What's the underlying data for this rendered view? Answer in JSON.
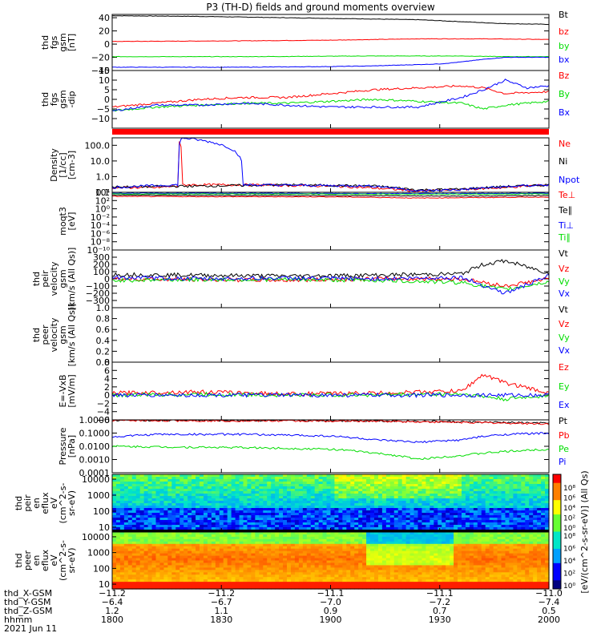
{
  "title": "P3 (TH-D) fields and ground moments overview",
  "colors": {
    "black": "#000000",
    "red": "#ff0000",
    "green": "#00dd00",
    "blue": "#0000ff",
    "lightgreen": "#66ff33"
  },
  "chart_data": [
    {
      "type": "line",
      "ylabel_lines": [
        "thd",
        "fgs",
        "gsm",
        "[nT]"
      ],
      "ylim": [
        -40,
        45
      ],
      "yticks": [
        "40",
        "20",
        "0",
        "−20",
        "−40"
      ],
      "ytick_values": [
        40,
        20,
        0,
        -20,
        -40
      ],
      "series": [
        {
          "name": "Bt",
          "color": "#000000",
          "x": [
            0,
            0.2,
            0.4,
            0.5,
            0.6,
            0.7,
            0.8,
            0.9,
            1
          ],
          "y": [
            43,
            42,
            40,
            39,
            38,
            37,
            34,
            31,
            30
          ]
        },
        {
          "name": "bz",
          "color": "#ff0000",
          "x": [
            0,
            0.3,
            0.5,
            0.7,
            0.85,
            1
          ],
          "y": [
            4,
            5,
            6,
            8,
            8,
            7
          ]
        },
        {
          "name": "by",
          "color": "#00dd00",
          "x": [
            0,
            0.3,
            0.6,
            0.8,
            0.9,
            1
          ],
          "y": [
            -19,
            -19,
            -18,
            -18,
            -19,
            -19
          ]
        },
        {
          "name": "bx",
          "color": "#0000ff",
          "x": [
            0,
            0.3,
            0.5,
            0.6,
            0.75,
            0.8,
            0.85,
            0.9,
            1
          ],
          "y": [
            -35,
            -35,
            -34,
            -33,
            -30,
            -27,
            -23,
            -20,
            -20
          ]
        }
      ]
    },
    {
      "type": "line",
      "ylabel_lines": [
        "thd",
        "fgs",
        "gsm",
        "-dip"
      ],
      "ylim": [
        -15,
        15
      ],
      "yticks": [
        "15",
        "10",
        "5",
        "0",
        "−5",
        "−10"
      ],
      "ytick_values": [
        15,
        10,
        5,
        0,
        -5,
        -10
      ],
      "series": [
        {
          "name": "Bz",
          "color": "#ff0000",
          "x": [
            0,
            0.1,
            0.2,
            0.3,
            0.4,
            0.5,
            0.6,
            0.7,
            0.8,
            0.85,
            0.9,
            1
          ],
          "y": [
            -4,
            -2,
            0,
            1,
            1,
            3,
            5,
            6,
            7,
            6,
            3,
            4
          ]
        },
        {
          "name": "By",
          "color": "#00dd00",
          "x": [
            0,
            0.1,
            0.2,
            0.3,
            0.4,
            0.5,
            0.6,
            0.7,
            0.8,
            0.85,
            0.9,
            1
          ],
          "y": [
            -6,
            -4,
            -3,
            -2,
            -2,
            -1,
            0,
            -1,
            -2,
            -5,
            -3,
            -1
          ]
        },
        {
          "name": "Bx",
          "color": "#0000ff",
          "x": [
            0,
            0.1,
            0.2,
            0.3,
            0.4,
            0.5,
            0.6,
            0.7,
            0.8,
            0.85,
            0.9,
            0.95,
            1
          ],
          "y": [
            -6,
            -3,
            -3,
            -2,
            -3,
            -4,
            -4,
            -4,
            1,
            5,
            10,
            6,
            7
          ]
        }
      ]
    },
    {
      "type": "line",
      "ylabel_lines": [
        "Density",
        "[1/cc]",
        "[cm-3]"
      ],
      "scale": "log",
      "ylim": [
        0.1,
        300
      ],
      "yticks": [
        "100.0",
        "10.0",
        "1.0",
        "0.1"
      ],
      "ytick_values": [
        100,
        10,
        1,
        0.1
      ],
      "series": [
        {
          "name": "Ne",
          "color": "#ff0000",
          "x": [
            0,
            0.1,
            0.15,
            0.15,
            0.16,
            0.3,
            0.5,
            0.7,
            0.8,
            0.9,
            1
          ],
          "y": [
            0.2,
            0.2,
            0.25,
            300,
            0.3,
            0.3,
            0.25,
            0.12,
            0.15,
            0.2,
            0.3
          ]
        },
        {
          "name": "Ni",
          "color": "#000000",
          "x": [
            0,
            0.2,
            0.4,
            0.6,
            0.7,
            0.8,
            1
          ],
          "y": [
            0.22,
            0.25,
            0.3,
            0.25,
            0.14,
            0.16,
            0.3
          ]
        },
        {
          "name": "Npot",
          "color": "#0000ff",
          "x": [
            0,
            0.15,
            0.16,
            0.3,
            0.6,
            0.7,
            0.8,
            1
          ],
          "y": [
            0.2,
            0.3,
            300,
            0.3,
            0.25,
            0.12,
            0.15,
            0.3
          ]
        }
      ]
    },
    {
      "type": "line",
      "ylabel_lines": [
        "moqt3",
        "[eV]"
      ],
      "scale": "log",
      "ylim": [
        1e-10,
        10000.0
      ],
      "yticks": [
        "10⁴",
        "10²",
        "10⁰",
        "10⁻²",
        "10⁻⁴",
        "10⁻⁶",
        "10⁻⁸",
        "10⁻¹⁰"
      ],
      "ytick_values": [
        10000.0,
        100.0,
        1,
        0.01,
        0.0001,
        1e-06,
        1e-08,
        1e-10
      ],
      "series": [
        {
          "name": "Te⊥",
          "color": "#ff0000",
          "x": [
            0,
            0.2,
            0.5,
            0.7,
            0.8,
            1
          ],
          "y": [
            1000,
            900,
            800,
            400,
            500,
            700
          ]
        },
        {
          "name": "Te∥",
          "color": "#000000",
          "x": [
            0,
            0.3,
            0.6,
            0.8,
            1
          ],
          "y": [
            2000,
            1800,
            1500,
            1200,
            1600
          ]
        },
        {
          "name": "Ti⊥",
          "color": "#0000ff",
          "x": [
            0,
            0.3,
            0.6,
            0.8,
            1
          ],
          "y": [
            6000,
            6000,
            5000,
            5000,
            6000
          ]
        },
        {
          "name": "Ti∥",
          "color": "#00dd00",
          "x": [
            0,
            0.3,
            0.6,
            0.8,
            1
          ],
          "y": [
            4000,
            4000,
            3500,
            3500,
            4000
          ]
        }
      ]
    },
    {
      "type": "line",
      "ylabel_lines": [
        "thd",
        "peir",
        "velocity",
        "gsm",
        "[km/s (All Qs)]"
      ],
      "ylim": [
        -400,
        400
      ],
      "yticks": [
        "300",
        "200",
        "100",
        "0",
        "−100",
        "−200",
        "−300"
      ],
      "ytick_values": [
        300,
        200,
        100,
        0,
        -100,
        -200,
        -300
      ],
      "series": [
        {
          "name": "Vt",
          "color": "#000000",
          "x": [
            0,
            0.2,
            0.4,
            0.6,
            0.8,
            0.85,
            0.9,
            1
          ],
          "y": [
            60,
            50,
            40,
            50,
            70,
            200,
            250,
            80
          ]
        },
        {
          "name": "Vz",
          "color": "#ff0000",
          "x": [
            0,
            0.2,
            0.4,
            0.6,
            0.8,
            0.9,
            1
          ],
          "y": [
            0,
            -10,
            -20,
            0,
            0,
            -100,
            0
          ]
        },
        {
          "name": "Vy",
          "color": "#00dd00",
          "x": [
            0,
            0.2,
            0.4,
            0.6,
            0.8,
            0.9,
            1
          ],
          "y": [
            -20,
            -10,
            -10,
            -20,
            -50,
            -150,
            -40
          ]
        },
        {
          "name": "Vx",
          "color": "#0000ff",
          "x": [
            0,
            0.2,
            0.4,
            0.6,
            0.8,
            0.9,
            1
          ],
          "y": [
            20,
            0,
            10,
            0,
            20,
            -200,
            40
          ]
        }
      ]
    },
    {
      "type": "line",
      "ylabel_lines": [
        "thd",
        "peer",
        "velocity",
        "gsm",
        "[km/s (All Qs)]"
      ],
      "ylim": [
        0,
        1
      ],
      "yticks": [
        "1.0",
        "0.8",
        "0.6",
        "0.4",
        "0.2",
        "0.0"
      ],
      "ytick_values": [
        1,
        0.8,
        0.6,
        0.4,
        0.2,
        0
      ],
      "series": [
        {
          "name": "Vt",
          "color": "#000000",
          "x": [],
          "y": []
        },
        {
          "name": "Vz",
          "color": "#ff0000",
          "x": [],
          "y": []
        },
        {
          "name": "Vy",
          "color": "#00dd00",
          "x": [],
          "y": []
        },
        {
          "name": "Vx",
          "color": "#0000ff",
          "x": [],
          "y": []
        }
      ]
    },
    {
      "type": "line",
      "ylabel_lines": [
        "E=-VxB",
        "[mV/m]"
      ],
      "ylim": [
        -6,
        8
      ],
      "yticks": [
        "8",
        "6",
        "4",
        "2",
        "0",
        "−2",
        "−4",
        "−6"
      ],
      "ytick_values": [
        8,
        6,
        4,
        2,
        0,
        -2,
        -4,
        -6
      ],
      "series": [
        {
          "name": "Ez",
          "color": "#ff0000",
          "x": [
            0,
            0.2,
            0.4,
            0.6,
            0.8,
            0.85,
            0.9,
            1
          ],
          "y": [
            0.5,
            0.8,
            0.3,
            0.5,
            1,
            5,
            3,
            0.5
          ]
        },
        {
          "name": "Ey",
          "color": "#00dd00",
          "x": [
            0,
            0.2,
            0.4,
            0.6,
            0.8,
            0.9,
            1
          ],
          "y": [
            0,
            0.2,
            0,
            0.1,
            0.3,
            -1,
            0
          ]
        },
        {
          "name": "Ex",
          "color": "#0000ff",
          "x": [
            0,
            0.2,
            0.4,
            0.6,
            0.8,
            0.9,
            1
          ],
          "y": [
            0,
            0,
            0,
            0,
            0,
            0,
            0
          ]
        }
      ]
    },
    {
      "type": "line",
      "ylabel_lines": [
        "Pressure",
        "[nPa]"
      ],
      "scale": "log",
      "ylim": [
        0.0001,
        1
      ],
      "yticks": [
        "1.0000",
        "0.1000",
        "0.0100",
        "0.0010",
        "0.0001"
      ],
      "ytick_values": [
        1,
        0.1,
        0.01,
        0.001,
        0.0001
      ],
      "series": [
        {
          "name": "Pt",
          "color": "#000000",
          "x": [
            0,
            0.3,
            0.6,
            0.8,
            1
          ],
          "y": [
            0.95,
            0.9,
            0.85,
            0.7,
            0.55
          ]
        },
        {
          "name": "Pb",
          "color": "#ff0000",
          "x": [
            0,
            0.3,
            0.6,
            0.8,
            1
          ],
          "y": [
            0.9,
            0.85,
            0.8,
            0.65,
            0.5
          ]
        },
        {
          "name": "Pe",
          "color": "#00dd00",
          "x": [
            0,
            0.1,
            0.3,
            0.5,
            0.6,
            0.7,
            0.8,
            0.9,
            1
          ],
          "y": [
            0.01,
            0.009,
            0.008,
            0.006,
            0.003,
            0.001,
            0.002,
            0.004,
            0.006
          ]
        },
        {
          "name": "Pi",
          "color": "#0000ff",
          "x": [
            0,
            0.1,
            0.3,
            0.5,
            0.6,
            0.7,
            0.8,
            0.9,
            1
          ],
          "y": [
            0.05,
            0.08,
            0.08,
            0.06,
            0.03,
            0.02,
            0.03,
            0.08,
            0.1
          ]
        }
      ]
    },
    {
      "type": "heatmap",
      "ylabel_lines": [
        "thd",
        "peir",
        "en",
        "eflux",
        "eV",
        "(cm^2-s-",
        "sr-eV)"
      ],
      "yticks": [
        "10000",
        "1000",
        "100",
        "10"
      ],
      "ytick_values": [
        10000,
        1000,
        100,
        10
      ],
      "ylim": [
        5,
        20000
      ]
    },
    {
      "type": "heatmap",
      "ylabel_lines": [
        "thd",
        "peer",
        "en",
        "eflux",
        "eV",
        "(cm^2-s-",
        "sr-eV)"
      ],
      "yticks": [
        "10000",
        "1000",
        "100",
        "10"
      ],
      "ytick_values": [
        10000,
        1000,
        100,
        10
      ],
      "ylim": [
        5,
        20000
      ]
    }
  ],
  "colorbar": {
    "label": "[eV/(cm^2-s-sr-eV)] (All Qs)",
    "ticks_upper": [
      "10⁸",
      "10⁶",
      "10⁴",
      "10²",
      "10⁰"
    ],
    "ticks_lower": [
      "10⁸",
      "10⁶",
      "10⁴",
      "10²",
      "10⁰"
    ]
  },
  "xaxis": {
    "tick_labels": [
      "1800",
      "1830",
      "1900",
      "1930",
      "2000"
    ],
    "row_labels": [
      "thd_X-GSM",
      "thd_Y-GSM",
      "thd_Z-GSM",
      "hhmm",
      "2021 Jun 11"
    ],
    "rows": [
      [
        "−11.2",
        "−11.2",
        "−11.1",
        "−11.1",
        "−11.0"
      ],
      [
        "−6.4",
        "−6.7",
        "−7.0",
        "−7.2",
        "−7.4"
      ],
      [
        "1.2",
        "1.1",
        "0.9",
        "0.7",
        "0.5"
      ]
    ]
  }
}
